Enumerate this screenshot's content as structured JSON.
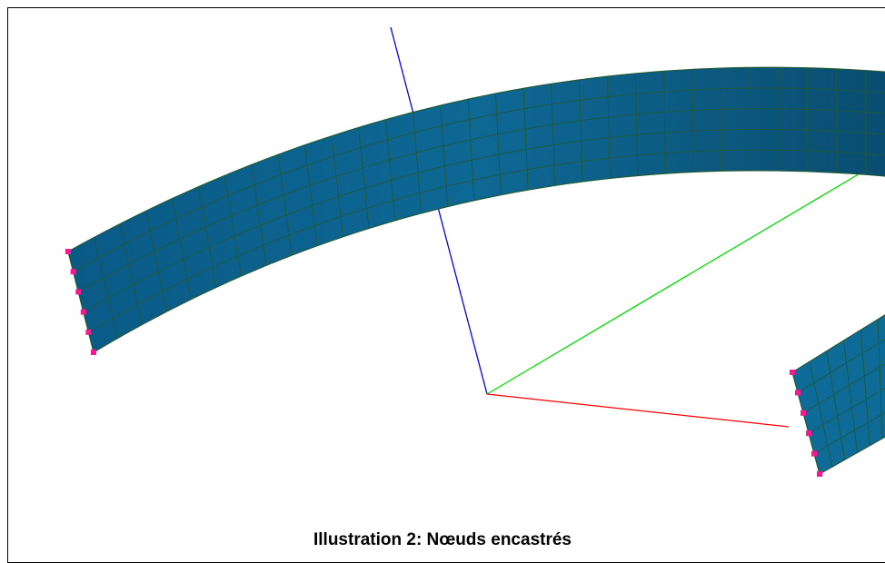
{
  "caption": "Illustration 2: Nœuds encastrés",
  "colors": {
    "shell_fill": "#0c5f8a",
    "shell_fill_dark": "#0a4f73",
    "mesh_lines": "#1e5a3a",
    "node_markers": "#ff1493",
    "axis_x": "#ff0000",
    "axis_y": "#00dd00",
    "axis_z": "#0000ff",
    "frame": "#000000"
  },
  "icons": {
    "clamped_node": "square-marker"
  }
}
